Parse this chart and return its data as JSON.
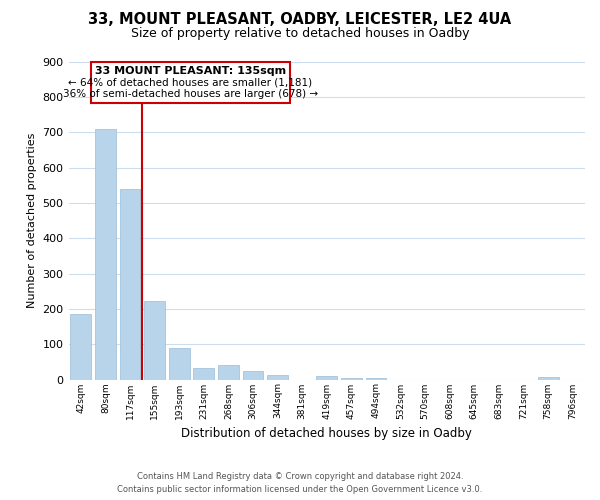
{
  "title": "33, MOUNT PLEASANT, OADBY, LEICESTER, LE2 4UA",
  "subtitle": "Size of property relative to detached houses in Oadby",
  "xlabel": "Distribution of detached houses by size in Oadby",
  "ylabel": "Number of detached properties",
  "bin_labels": [
    "42sqm",
    "80sqm",
    "117sqm",
    "155sqm",
    "193sqm",
    "231sqm",
    "268sqm",
    "306sqm",
    "344sqm",
    "381sqm",
    "419sqm",
    "457sqm",
    "494sqm",
    "532sqm",
    "570sqm",
    "608sqm",
    "645sqm",
    "683sqm",
    "721sqm",
    "758sqm",
    "796sqm"
  ],
  "bar_values": [
    185,
    710,
    540,
    222,
    88,
    33,
    40,
    25,
    13,
    0,
    10,
    5,
    3,
    0,
    0,
    0,
    0,
    0,
    0,
    8,
    0
  ],
  "bar_color": "#b8d4ea",
  "bar_edge_color": "#9bbdd8",
  "reference_line_label": "33 MOUNT PLEASANT: 135sqm",
  "annotation_line1": "← 64% of detached houses are smaller (1,181)",
  "annotation_line2": "36% of semi-detached houses are larger (678) →",
  "box_color": "#ffffff",
  "box_edge_color": "#cc0000",
  "vline_color": "#cc0000",
  "ylim": [
    0,
    900
  ],
  "yticks": [
    0,
    100,
    200,
    300,
    400,
    500,
    600,
    700,
    800,
    900
  ],
  "footer_line1": "Contains HM Land Registry data © Crown copyright and database right 2024.",
  "footer_line2": "Contains public sector information licensed under the Open Government Licence v3.0.",
  "background_color": "#ffffff",
  "grid_color": "#ccdded"
}
